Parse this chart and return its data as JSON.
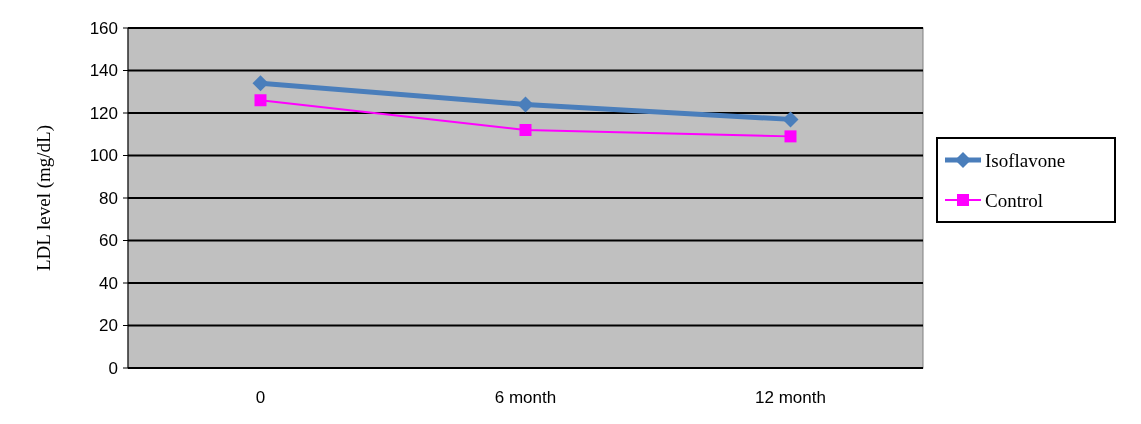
{
  "chart_data": {
    "type": "line",
    "ylabel": "LDL level (mg/dL)",
    "categories": [
      "0",
      "6 month",
      "12 month"
    ],
    "series": [
      {
        "name": "Isoflavone",
        "color": "#4a7ebb",
        "values": [
          134,
          124,
          117
        ],
        "marker": "diamond"
      },
      {
        "name": "Control",
        "color": "#ff00ff",
        "values": [
          126,
          112,
          109
        ],
        "marker": "square"
      }
    ],
    "ylim": [
      0,
      160
    ],
    "yticks": [
      0,
      20,
      40,
      60,
      80,
      100,
      120,
      140,
      160
    ],
    "grid": "y",
    "legend": "right"
  }
}
